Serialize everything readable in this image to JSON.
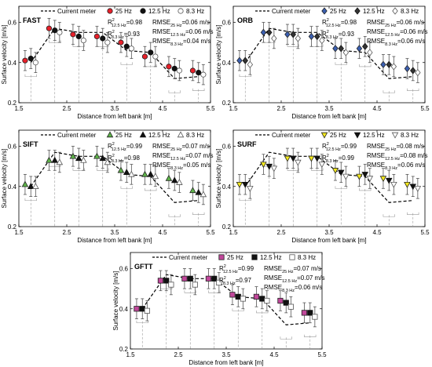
{
  "common": {
    "xlabel": "Distance from left bank [m]",
    "ylabel": "Surface velocity [m/s]",
    "xticks": [
      "1.5",
      "2.5",
      "3.5",
      "4.5",
      "5.5"
    ],
    "yticks": [
      "0.2",
      "0.4",
      "0.6"
    ],
    "xlim": [
      1.5,
      5.5
    ],
    "ylim": [
      0.2,
      0.68
    ],
    "legend_current": "Current meter",
    "legend_25": "25 Hz",
    "legend_125": "12.5 Hz",
    "legend_83": "8.3 Hz",
    "current_meter": {
      "x": [
        1.75,
        2.25,
        2.75,
        3.25,
        3.75,
        4.25,
        4.75,
        5.25
      ],
      "y": [
        0.4,
        0.57,
        0.55,
        0.55,
        0.46,
        0.45,
        0.32,
        0.33
      ]
    },
    "error_bar_halfwidth": 0.05
  },
  "chart_data": [
    {
      "type": "scatter",
      "title": "FAST",
      "marker": "circle",
      "color_25": "#e8202a",
      "color_125": "#111111",
      "r2_125": "R",
      "r2_125_sup": "2",
      "r2_125_sub": "12.5 Hz",
      "r2_125_val": "=0.98",
      "r2_83": "R",
      "r2_83_sup": "2",
      "r2_83_sub": "8.3 Hz",
      "r2_83_val": "=0.93",
      "rmse_25": "RMSE",
      "rmse_25_sub": "25 Hz",
      "rmse_25_val": "=0.06 m/s",
      "rmse_125": "RMSE",
      "rmse_125_sub": "12.5 Hz",
      "rmse_125_val": "=0.06 m/s",
      "rmse_83": "RMSE",
      "rmse_83_sub": "8.3 Hz",
      "rmse_83_val": "=0.04 m/s",
      "series": [
        {
          "name": "25 Hz",
          "x": [
            1.63,
            2.13,
            2.63,
            3.13,
            3.63,
            4.13,
            4.63,
            5.13
          ],
          "y": [
            0.41,
            0.57,
            0.54,
            0.53,
            0.5,
            0.43,
            0.38,
            0.36
          ]
        },
        {
          "name": "12.5 Hz",
          "x": [
            1.75,
            2.25,
            2.75,
            3.25,
            3.75,
            4.25,
            4.75,
            5.25
          ],
          "y": [
            0.42,
            0.56,
            0.53,
            0.52,
            0.48,
            0.45,
            0.37,
            0.35
          ]
        },
        {
          "name": "8.3 Hz",
          "x": [
            1.85,
            2.35,
            2.85,
            3.35,
            3.85,
            4.35,
            4.85,
            5.35
          ],
          "y": [
            0.4,
            0.55,
            0.51,
            0.5,
            0.47,
            0.43,
            0.36,
            0.34
          ]
        }
      ]
    },
    {
      "type": "scatter",
      "title": "ORB",
      "marker": "diamond",
      "color_25": "#3b5fb0",
      "color_125": "#333333",
      "r2_125": "R",
      "r2_125_sup": "2",
      "r2_125_sub": "12.5 Hz",
      "r2_125_val": "=0.98",
      "r2_83": "R",
      "r2_83_sup": "2",
      "r2_83_sub": "8.3 Hz",
      "r2_83_val": "=0.93",
      "rmse_25": "RMSE",
      "rmse_25_sub": "25 Hz",
      "rmse_25_val": "=0.06 m/s",
      "rmse_125": "RMSE",
      "rmse_125_sub": "12.5 Hz",
      "rmse_125_val": "=0.06 m/s",
      "rmse_83": "RMSE",
      "rmse_83_sub": "8.3 Hz",
      "rmse_83_val": "=0.06 m/s",
      "series": [
        {
          "name": "25 Hz",
          "x": [
            1.63,
            2.13,
            2.63,
            3.13,
            3.63,
            4.13,
            4.63,
            5.13
          ],
          "y": [
            0.41,
            0.55,
            0.54,
            0.53,
            0.47,
            0.47,
            0.39,
            0.37
          ]
        },
        {
          "name": "12.5 Hz",
          "x": [
            1.75,
            2.25,
            2.75,
            3.25,
            3.75,
            4.25,
            4.75,
            5.25
          ],
          "y": [
            0.41,
            0.55,
            0.54,
            0.53,
            0.47,
            0.48,
            0.39,
            0.36
          ]
        },
        {
          "name": "8.3 Hz",
          "x": [
            1.85,
            2.35,
            2.85,
            3.35,
            3.85,
            4.35,
            4.85,
            5.35
          ],
          "y": [
            0.39,
            0.52,
            0.52,
            0.51,
            0.45,
            0.45,
            0.38,
            0.35
          ]
        }
      ]
    },
    {
      "type": "scatter",
      "title": "SIFT",
      "marker": "triangle",
      "color_25": "#5fb54a",
      "color_125": "#111111",
      "r2_125": "R",
      "r2_125_sup": "2",
      "r2_125_sub": "12.5 Hz",
      "r2_125_val": "=0.99",
      "r2_83": "R",
      "r2_83_sup": "2",
      "r2_83_sub": "8.3 Hz",
      "r2_83_val": "=0.98",
      "rmse_25": "RMSE",
      "rmse_25_sub": "25 Hz",
      "rmse_25_val": "=0.07 m/s",
      "rmse_125": "RMSE",
      "rmse_125_sub": "12.5 Hz",
      "rmse_125_val": "=0.07 m/s",
      "rmse_83": "RMSE",
      "rmse_83_sub": "8.3 Hz",
      "rmse_83_val": "=0.05 m/s",
      "series": [
        {
          "name": "25 Hz",
          "x": [
            1.63,
            2.13,
            2.63,
            3.13,
            3.63,
            4.13,
            4.63,
            5.13
          ],
          "y": [
            0.41,
            0.53,
            0.55,
            0.55,
            0.48,
            0.46,
            0.44,
            0.38
          ]
        },
        {
          "name": "12.5 Hz",
          "x": [
            1.75,
            2.25,
            2.75,
            3.25,
            3.75,
            4.25,
            4.75,
            5.25
          ],
          "y": [
            0.4,
            0.53,
            0.54,
            0.54,
            0.47,
            0.46,
            0.43,
            0.37
          ]
        },
        {
          "name": "8.3 Hz",
          "x": [
            1.85,
            2.35,
            2.85,
            3.35,
            3.85,
            4.35,
            4.85,
            5.35
          ],
          "y": [
            0.4,
            0.52,
            0.53,
            0.52,
            0.46,
            0.45,
            0.42,
            0.36
          ]
        }
      ]
    },
    {
      "type": "scatter",
      "title": "SURF",
      "marker": "invtriangle",
      "color_25": "#f2e81e",
      "color_125": "#111111",
      "r2_125": "R",
      "r2_125_sup": "2",
      "r2_125_sub": "12.5 Hz",
      "r2_125_val": "=0.99",
      "r2_83": "R",
      "r2_83_sup": "2",
      "r2_83_sub": "8.3 Hz",
      "r2_83_val": "=0.99",
      "rmse_25": "RMSE",
      "rmse_25_sub": "25 Hz",
      "rmse_25_val": "=0.08 m/s",
      "rmse_125": "RMSE",
      "rmse_125_sub": "12.5 Hz",
      "rmse_125_val": "=0.08 m/s",
      "rmse_83": "RMSE",
      "rmse_83_sub": "8.3 Hz",
      "rmse_83_val": "=0.06 m/s",
      "series": [
        {
          "name": "25 Hz",
          "x": [
            1.63,
            2.13,
            2.63,
            3.13,
            3.63,
            4.13,
            4.63,
            5.13
          ],
          "y": [
            0.41,
            0.51,
            0.54,
            0.54,
            0.48,
            0.45,
            0.44,
            0.41
          ]
        },
        {
          "name": "12.5 Hz",
          "x": [
            1.75,
            2.25,
            2.75,
            3.25,
            3.75,
            4.25,
            4.75,
            5.25
          ],
          "y": [
            0.41,
            0.5,
            0.54,
            0.54,
            0.47,
            0.46,
            0.43,
            0.4
          ]
        },
        {
          "name": "8.3 Hz",
          "x": [
            1.85,
            2.35,
            2.85,
            3.35,
            3.85,
            4.35,
            4.85,
            5.35
          ],
          "y": [
            0.39,
            0.49,
            0.52,
            0.51,
            0.45,
            0.44,
            0.41,
            0.39
          ]
        }
      ]
    },
    {
      "type": "scatter",
      "title": "GFTT",
      "marker": "square",
      "color_25": "#c0479a",
      "color_125": "#111111",
      "r2_125": "R",
      "r2_125_sup": "2",
      "r2_125_sub": "12.5 Hz",
      "r2_125_val": "=0.99",
      "r2_83": "R",
      "r2_83_sup": "2",
      "r2_83_sub": "8.3 Hz",
      "r2_83_val": "=0.97",
      "rmse_25": "RMSE",
      "rmse_25_sub": "25 Hz",
      "rmse_25_val": "=0.07 m/s",
      "rmse_125": "RMSE",
      "rmse_125_sub": "12.5 Hz",
      "rmse_125_val": "=0.07 m/s",
      "rmse_83": "RMSE",
      "rmse_83_sub": "8.3 Hz",
      "rmse_83_val": "=0.06 m/s",
      "series": [
        {
          "name": "25 Hz",
          "x": [
            1.63,
            2.13,
            2.63,
            3.13,
            3.63,
            4.13,
            4.63,
            5.13
          ],
          "y": [
            0.4,
            0.54,
            0.55,
            0.55,
            0.47,
            0.46,
            0.44,
            0.38
          ]
        },
        {
          "name": "12.5 Hz",
          "x": [
            1.75,
            2.25,
            2.75,
            3.25,
            3.75,
            4.25,
            4.75,
            5.25
          ],
          "y": [
            0.4,
            0.54,
            0.55,
            0.55,
            0.46,
            0.45,
            0.43,
            0.38
          ]
        },
        {
          "name": "8.3 Hz",
          "x": [
            1.85,
            2.35,
            2.85,
            3.35,
            3.85,
            4.35,
            4.85,
            5.35
          ],
          "y": [
            0.39,
            0.52,
            0.52,
            0.53,
            0.45,
            0.44,
            0.41,
            0.36
          ]
        }
      ]
    }
  ]
}
